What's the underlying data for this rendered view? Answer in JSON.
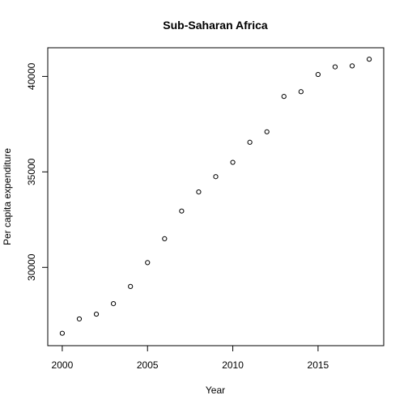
{
  "chart_data": {
    "type": "scatter",
    "title": "Sub-Saharan Africa",
    "xlabel": "Year",
    "ylabel": "Per capita expenditure",
    "xlim": [
      1999.15,
      2018.85
    ],
    "ylim": [
      25900,
      41500
    ],
    "x_ticks": [
      2000,
      2005,
      2010,
      2015
    ],
    "y_ticks": [
      30000,
      35000,
      40000
    ],
    "grid": false,
    "x": [
      2000,
      2001,
      2002,
      2003,
      2004,
      2005,
      2006,
      2007,
      2008,
      2009,
      2010,
      2011,
      2012,
      2013,
      2014,
      2015,
      2016,
      2017,
      2018
    ],
    "y": [
      26550,
      27300,
      27550,
      28100,
      29000,
      30250,
      31500,
      32950,
      33950,
      34750,
      35500,
      36550,
      37100,
      38950,
      39200,
      40100,
      40500,
      40550,
      40900
    ]
  }
}
